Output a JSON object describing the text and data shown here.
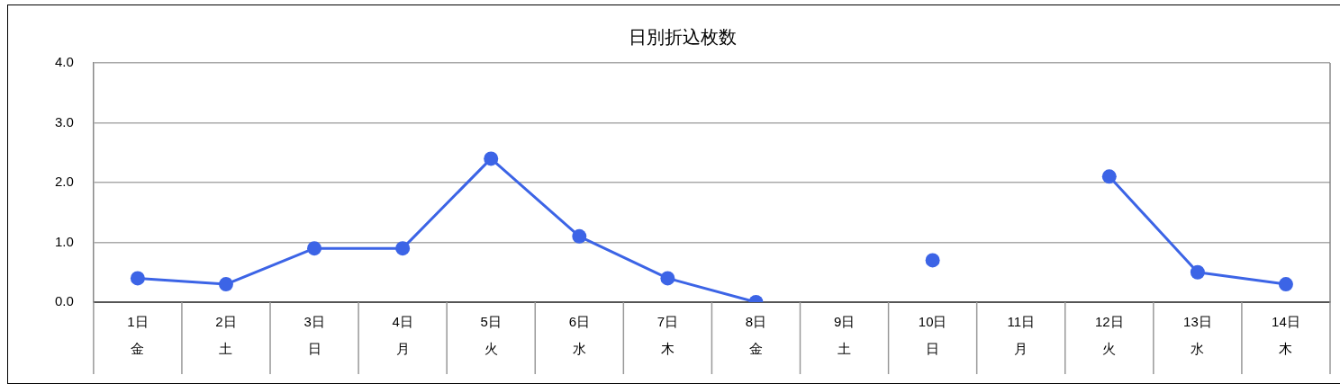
{
  "chart_data": {
    "type": "line",
    "title": "日別折込枚数",
    "categories": [
      "1日金",
      "2日土",
      "3日日",
      "4日月",
      "5日火",
      "6日水",
      "7日木",
      "8日金",
      "9日土",
      "10日日",
      "11日月",
      "12日火",
      "13日水",
      "14日木"
    ],
    "series": [
      {
        "color": "#3c64e6",
        "values": [
          0.4,
          0.3,
          0.9,
          0.9,
          2.4,
          1.1,
          0.4,
          0.0,
          null,
          0.7,
          null,
          2.1,
          0.5,
          0.3
        ]
      }
    ],
    "ylim": [
      0,
      4
    ],
    "yticks": [
      {
        "value": 0,
        "label": "0.0"
      },
      {
        "value": 1,
        "label": "1.0"
      },
      {
        "value": 2,
        "label": "2.0"
      },
      {
        "value": 3,
        "label": "3.0"
      },
      {
        "value": 4,
        "label": "4.0"
      }
    ],
    "grid": "y",
    "legend": false,
    "marker": "circle",
    "line_style": "solid"
  }
}
